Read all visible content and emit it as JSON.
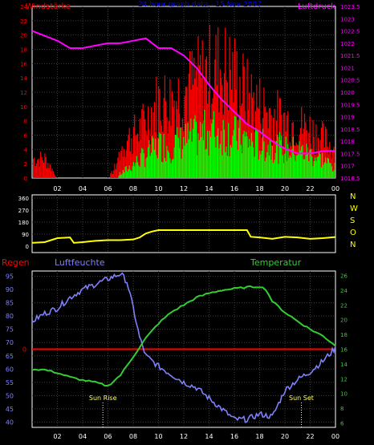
{
  "header": {
    "wind_label": "Windstärke",
    "title": "24 hour graph data - 15 Nov 2007",
    "pressure_label": "Luftdruck"
  },
  "colors": {
    "wind_gust": "#ff0000",
    "wind_avg": "#00ff00",
    "pressure": "#ff00ff",
    "wind_dir": "#ffff00",
    "humidity": "#8080ff",
    "temperature": "#33cc33",
    "rain": "#ff0000",
    "axis": "#ffffff",
    "grid": "#404040",
    "title": "#0000ff"
  },
  "time_ticks": [
    "02",
    "04",
    "06",
    "08",
    "10",
    "12",
    "14",
    "16",
    "18",
    "20",
    "22",
    "00"
  ],
  "compass": [
    "N",
    "W",
    "S",
    "O",
    "N"
  ],
  "chart_data": [
    {
      "type": "bar",
      "name": "wind_and_pressure",
      "title": "24 hour graph data - 15 Nov 2007",
      "y_left_label": "Windstärke",
      "y_right_label": "Luftdruck",
      "y_left_ticks": [
        "0",
        "2",
        "4",
        "6",
        "8",
        "10",
        "12",
        "14",
        "16",
        "18",
        "20",
        "22",
        "24"
      ],
      "y_left_range": [
        0,
        24
      ],
      "y_right_ticks": [
        "1016.5",
        "1017",
        "1017.5",
        "1018",
        "1018.5",
        "1019",
        "1019.5",
        "1020",
        "1020.5",
        "1021",
        "1021.5",
        "1022",
        "1022.5",
        "1023",
        "1023.5"
      ],
      "y_right_range": [
        1016.5,
        1023.5
      ],
      "x_hours": [
        0.3,
        1,
        2,
        3,
        4,
        5,
        6,
        6.5,
        7,
        7.5,
        8,
        8.5,
        9,
        9.5,
        10,
        11,
        12,
        13,
        14,
        15,
        16,
        17,
        18,
        19,
        20,
        21,
        22,
        23,
        24
      ],
      "gust_envelope": [
        4,
        4,
        0,
        0,
        0,
        0,
        0,
        2,
        6,
        8,
        9,
        10,
        12,
        14,
        16,
        16,
        18,
        20,
        22,
        23,
        21,
        17,
        15,
        13,
        12,
        11,
        10,
        8,
        6
      ],
      "avg_envelope": [
        0,
        0,
        0,
        0,
        0,
        0,
        0,
        0,
        1,
        2,
        3,
        4,
        5,
        6,
        7,
        7,
        8,
        9,
        10,
        10,
        9,
        8,
        7,
        7,
        6,
        6,
        5,
        4,
        2
      ],
      "pressure_hours": [
        0,
        1,
        2,
        3,
        4,
        5,
        6,
        7,
        8,
        9,
        10,
        11,
        12,
        13,
        14,
        15,
        16,
        17,
        18,
        19,
        20,
        21,
        22,
        23,
        24
      ],
      "pressure_values": [
        1022.5,
        1022.3,
        1022.1,
        1021.8,
        1021.8,
        1021.9,
        1022.0,
        1022.0,
        1022.1,
        1022.2,
        1021.8,
        1021.8,
        1021.5,
        1021.0,
        1020.3,
        1019.7,
        1019.2,
        1018.7,
        1018.4,
        1018.0,
        1017.7,
        1017.5,
        1017.5,
        1017.6,
        1017.6
      ],
      "xlim": [
        0,
        24
      ],
      "grid": true
    },
    {
      "type": "line",
      "name": "wind_direction",
      "y_ticks": [
        "0",
        "90",
        "180",
        "270",
        "360"
      ],
      "y_range": [
        0,
        360
      ],
      "right_labels": [
        "N",
        "W",
        "S",
        "O",
        "N"
      ],
      "x": [
        0,
        1,
        2,
        3,
        3.3,
        4,
        5,
        6,
        7,
        8,
        8.5,
        9,
        9.5,
        10,
        11,
        12,
        13,
        14,
        15,
        16,
        17,
        17.3,
        18,
        19,
        20,
        21,
        22,
        23,
        24
      ],
      "values": [
        25,
        30,
        60,
        65,
        25,
        30,
        40,
        45,
        45,
        50,
        65,
        95,
        110,
        120,
        120,
        120,
        120,
        120,
        120,
        120,
        120,
        70,
        65,
        55,
        70,
        65,
        55,
        60,
        68
      ],
      "xlim": [
        0,
        24
      ],
      "grid": true
    },
    {
      "type": "line",
      "name": "rain_humidity_temperature",
      "labels": {
        "rain": "Regen",
        "humidity": "Luftfeuchte",
        "temperature": "Temperatur"
      },
      "y_left_ticks": [
        "40",
        "45",
        "50",
        "55",
        "60",
        "65",
        "70",
        "75",
        "80",
        "85",
        "90",
        "95"
      ],
      "y_left_range": [
        38,
        97
      ],
      "y_right_ticks": [
        "6",
        "8",
        "10",
        "12",
        "14",
        "16",
        "18",
        "20",
        "22",
        "24",
        "26"
      ],
      "y_right_range": [
        5.4,
        26.6
      ],
      "rain_tick": "0",
      "rain_level": 16,
      "annotations": [
        {
          "text": "Sun Rise",
          "hour": 5.6
        },
        {
          "text": "Sun Set",
          "hour": 21.3
        }
      ],
      "humidity": {
        "x": [
          0,
          1,
          2,
          3,
          4,
          5,
          6,
          7,
          7.5,
          8,
          8.5,
          9,
          10,
          11,
          12,
          13,
          14,
          15,
          16,
          17,
          18,
          19,
          20,
          21,
          22,
          23,
          24
        ],
        "values": [
          78,
          81,
          83,
          87,
          90,
          92,
          94,
          96,
          93,
          83,
          72,
          65,
          61,
          58,
          55,
          53,
          49,
          45,
          41,
          41,
          43,
          42,
          52,
          56,
          59,
          63,
          68
        ]
      },
      "temperature": {
        "x": [
          0,
          1,
          2,
          3,
          4,
          5,
          6,
          7,
          8,
          9,
          10,
          11,
          12,
          13,
          14,
          15,
          16,
          17,
          18,
          18.5,
          19,
          20,
          21,
          22,
          23,
          24
        ],
        "values": [
          13.3,
          13.2,
          12.8,
          12.2,
          11.8,
          11.5,
          11.0,
          12.5,
          15.0,
          17.5,
          19.5,
          21.0,
          22.0,
          23.0,
          23.6,
          24.0,
          24.2,
          24.4,
          24.5,
          24.1,
          22.5,
          21.0,
          19.8,
          18.7,
          17.8,
          16.5
        ]
      },
      "xlim": [
        0,
        24
      ],
      "grid": true
    }
  ]
}
